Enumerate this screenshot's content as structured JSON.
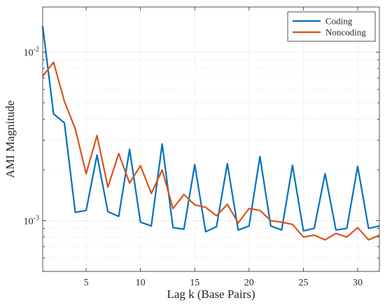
{
  "chart_data": {
    "type": "line",
    "title": "",
    "xlabel": "Lag k (Base Pairs)",
    "ylabel": "AMI Magnitude",
    "xlim": [
      1,
      32
    ],
    "ylim": [
      0.0005,
      0.0185
    ],
    "yscale": "log",
    "grid": true,
    "legend_position": "top-right",
    "x": [
      1,
      2,
      3,
      4,
      5,
      6,
      7,
      8,
      9,
      10,
      11,
      12,
      13,
      14,
      15,
      16,
      17,
      18,
      19,
      20,
      21,
      22,
      23,
      24,
      25,
      26,
      27,
      28,
      29,
      30,
      31,
      32
    ],
    "x_ticks": [
      5,
      10,
      15,
      20,
      25,
      30
    ],
    "x_tick_labels": [
      "5",
      "10",
      "15",
      "20",
      "25",
      "30"
    ],
    "y_ticks": [
      0.001,
      0.01
    ],
    "y_tick_labels": [
      {
        "base": "10",
        "exp": "-3"
      },
      {
        "base": "10",
        "exp": "-2"
      }
    ],
    "series": [
      {
        "name": "Coding",
        "color": "#0072BD",
        "values": [
          0.0142,
          0.0043,
          0.0038,
          0.00112,
          0.00115,
          0.00245,
          0.00113,
          0.00106,
          0.00265,
          0.00098,
          0.00093,
          0.00285,
          0.00091,
          0.00089,
          0.00215,
          0.00086,
          0.00092,
          0.00218,
          0.00088,
          0.00093,
          0.0024,
          0.00093,
          0.00088,
          0.00213,
          0.00087,
          0.0009,
          0.0019,
          0.00088,
          0.0009,
          0.0021,
          0.0009,
          0.00093
        ]
      },
      {
        "name": "Noncoding",
        "color": "#D95319",
        "values": [
          0.0072,
          0.0087,
          0.0051,
          0.0035,
          0.0019,
          0.0032,
          0.00158,
          0.0025,
          0.00167,
          0.00212,
          0.00145,
          0.002,
          0.00118,
          0.00143,
          0.00124,
          0.0012,
          0.00107,
          0.00125,
          0.00097,
          0.00118,
          0.00115,
          0.001,
          0.00098,
          0.00095,
          0.0008,
          0.00082,
          0.00077,
          0.00084,
          0.0008,
          0.00091,
          0.00077,
          0.00082
        ]
      }
    ]
  }
}
